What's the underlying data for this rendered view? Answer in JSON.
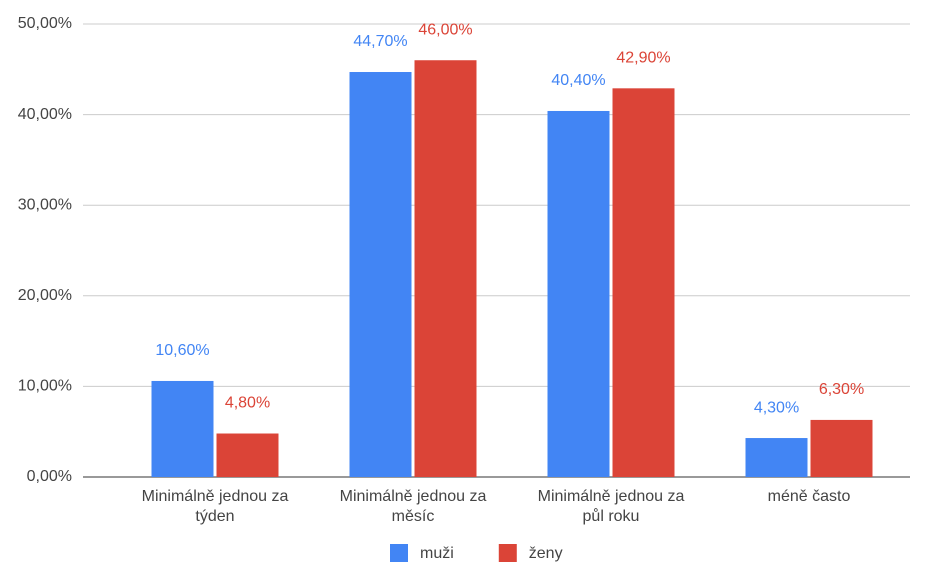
{
  "chart_data": {
    "type": "bar",
    "categories": [
      [
        "Minimálně jednou za",
        "týden"
      ],
      [
        "Minimálně jednou za",
        "měsíc"
      ],
      [
        "Minimálně jednou za",
        "půl roku"
      ],
      [
        "méně často"
      ]
    ],
    "series": [
      {
        "name": "muži",
        "color": "#4285f4",
        "values": [
          10.6,
          44.7,
          40.4,
          4.3
        ],
        "value_labels": [
          "10,60%",
          "44,70%",
          "40,40%",
          "4,30%"
        ]
      },
      {
        "name": "ženy",
        "color": "#db4437",
        "values": [
          4.8,
          46.0,
          42.9,
          6.3
        ],
        "value_labels": [
          "4,80%",
          "46,00%",
          "42,90%",
          "6,30%"
        ]
      }
    ],
    "ylim": [
      0,
      50
    ],
    "yticks": [
      {
        "value": 0,
        "label": "0,00%"
      },
      {
        "value": 10,
        "label": "10,00%"
      },
      {
        "value": 20,
        "label": "20,00%"
      },
      {
        "value": 30,
        "label": "30,00%"
      },
      {
        "value": 40,
        "label": "40,00%"
      },
      {
        "value": 50,
        "label": "50,00%"
      }
    ],
    "grid": true,
    "legend": "bottom"
  }
}
